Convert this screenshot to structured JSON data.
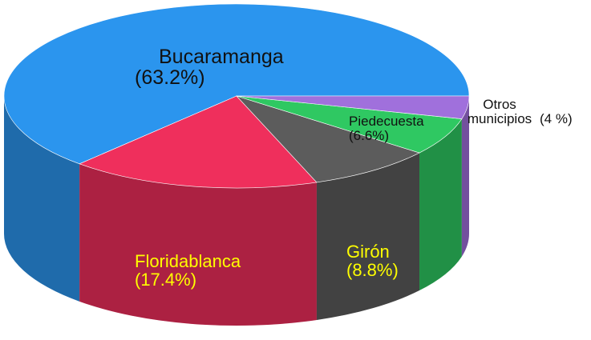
{
  "chart_data": {
    "type": "pie",
    "categories": [
      "Bucaramanga",
      "Floridablanca",
      "Girón",
      "Piedecuesta",
      "Otros municipios"
    ],
    "values": [
      63.2,
      17.4,
      8.8,
      6.6,
      4
    ],
    "value_labels": [
      "(63.2%)",
      "(17.4%)",
      "(8.8%)",
      "(6.6%)",
      "(4 %)"
    ],
    "colors": [
      "#2b95ee",
      "#ef2f5c",
      "#5c5c5c",
      "#2fc862",
      "#a070dc"
    ]
  }
}
